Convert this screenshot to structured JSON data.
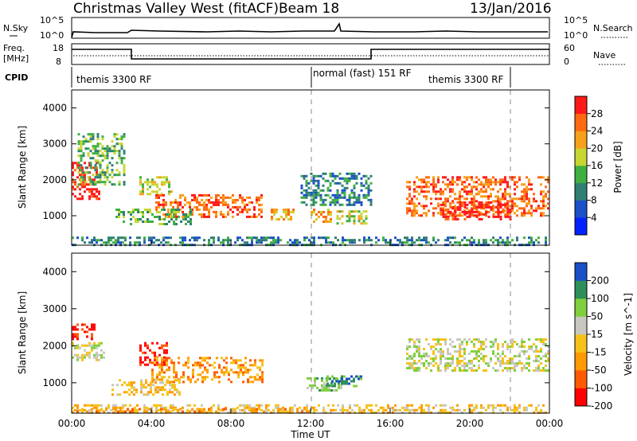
{
  "header": {
    "station": "Christmas Valley West (fitACF)",
    "beam": "Beam 18",
    "date": "13/Jan/2016"
  },
  "noise_panel": {
    "left_label": "N.Sky",
    "right_label": "N.Search",
    "ticks": [
      "10^5",
      "10^0"
    ]
  },
  "freq_panel": {
    "left_label_1": "Freq.",
    "left_label_2": "[MHz]",
    "right_label": "Nave",
    "left_ticks": [
      "18",
      "8"
    ],
    "right_ticks": [
      "60",
      "0"
    ]
  },
  "cpid": {
    "label": "CPID",
    "modes": [
      {
        "name": "themis 3300 RF",
        "start_h": 0
      },
      {
        "name": "normal (fast) 151 RF",
        "start_h": 12
      },
      {
        "name": "themis 3300 RF",
        "start_h": 22
      }
    ]
  },
  "chart_data": [
    {
      "type": "heatmap",
      "title": "",
      "xlabel": "Time UT",
      "ylabel": "Slant Range [km]",
      "xlim_h": [
        0,
        24
      ],
      "ylim_km": [
        180,
        4500
      ],
      "x_ticks": [
        "00:00",
        "04:00",
        "08:00",
        "12:00",
        "16:00",
        "20:00",
        "00:00"
      ],
      "y_ticks": [
        "1000",
        "2000",
        "3000",
        "4000"
      ],
      "y_tick_values": [
        1000,
        2000,
        3000,
        4000
      ],
      "colorbar": {
        "label": "Power [dB]",
        "ticks": [
          "4",
          "8",
          "12",
          "16",
          "20",
          "24",
          "28"
        ],
        "range": [
          0,
          32
        ],
        "colors": [
          "#0022ff",
          "#1a50c8",
          "#2f7f74",
          "#3fb040",
          "#c8d632",
          "#f7a11a",
          "#ff6a10",
          "#ff1a1a"
        ]
      },
      "echo_regions": [
        {
          "t": [
            0.0,
            1.4
          ],
          "r": [
            1500,
            2500
          ],
          "level": 7
        },
        {
          "t": [
            0.3,
            2.6
          ],
          "r": [
            1900,
            3300
          ],
          "level": 3
        },
        {
          "t": [
            3.4,
            5.0
          ],
          "r": [
            1600,
            2100
          ],
          "level": 4
        },
        {
          "t": [
            4.2,
            9.6
          ],
          "r": [
            1000,
            1600
          ],
          "level": 6
        },
        {
          "t": [
            2.2,
            6.0
          ],
          "r": [
            800,
            1200
          ],
          "level": 3
        },
        {
          "t": [
            10.0,
            11.2
          ],
          "r": [
            900,
            1200
          ],
          "level": 5
        },
        {
          "t": [
            12.0,
            13.0
          ],
          "r": [
            850,
            1200
          ],
          "level": 5
        },
        {
          "t": [
            13.3,
            14.8
          ],
          "r": [
            800,
            1150
          ],
          "level": 4
        },
        {
          "t": [
            11.5,
            15.0
          ],
          "r": [
            1300,
            2200
          ],
          "level": 2
        },
        {
          "t": [
            16.8,
            24.0
          ],
          "r": [
            1000,
            2100
          ],
          "level": 6
        },
        {
          "t": [
            18.5,
            22.0
          ],
          "r": [
            900,
            1400
          ],
          "level": 7
        },
        {
          "t": [
            0.0,
            24.0
          ],
          "r": [
            200,
            420
          ],
          "level": 2
        }
      ]
    },
    {
      "type": "heatmap",
      "title": "",
      "xlabel": "Time UT",
      "ylabel": "Slant Range [km]",
      "xlim_h": [
        0,
        24
      ],
      "ylim_km": [
        180,
        4500
      ],
      "x_ticks": [
        "00:00",
        "04:00",
        "08:00",
        "12:00",
        "16:00",
        "20:00",
        "00:00"
      ],
      "y_ticks": [
        "1000",
        "2000",
        "3000",
        "4000"
      ],
      "y_tick_values": [
        1000,
        2000,
        3000,
        4000
      ],
      "colorbar": {
        "label": "Velocity [m s^-1]",
        "ticks": [
          "200",
          "100",
          "50",
          "15",
          "-15",
          "-50",
          "-100",
          "-200"
        ],
        "range": [
          -250,
          250
        ],
        "colors": [
          "#ff0000",
          "#ff5a00",
          "#ff9a00",
          "#f6c21a",
          "#c8c8c0",
          "#7fd03c",
          "#2f8f5a",
          "#1a4fc8"
        ]
      },
      "echo_regions": [
        {
          "t": [
            0.0,
            1.2
          ],
          "r": [
            2200,
            2600
          ],
          "level": 0
        },
        {
          "t": [
            0.0,
            1.6
          ],
          "r": [
            1600,
            2100
          ],
          "level": 4
        },
        {
          "t": [
            3.4,
            4.8
          ],
          "r": [
            1500,
            2100
          ],
          "level": 0
        },
        {
          "t": [
            4.0,
            9.6
          ],
          "r": [
            1000,
            1700
          ],
          "level": 2
        },
        {
          "t": [
            2.0,
            5.4
          ],
          "r": [
            700,
            1100
          ],
          "level": 3
        },
        {
          "t": [
            11.8,
            13.6
          ],
          "r": [
            800,
            1150
          ],
          "level": 5
        },
        {
          "t": [
            12.8,
            14.6
          ],
          "r": [
            900,
            1200
          ],
          "level": 6
        },
        {
          "t": [
            16.8,
            24.0
          ],
          "r": [
            1300,
            2200
          ],
          "level": 4
        },
        {
          "t": [
            0.0,
            24.0
          ],
          "r": [
            200,
            420
          ],
          "level": 3
        },
        {
          "t": [
            0.0,
            12.0
          ],
          "r": [
            200,
            320
          ],
          "level": 2
        }
      ]
    }
  ]
}
